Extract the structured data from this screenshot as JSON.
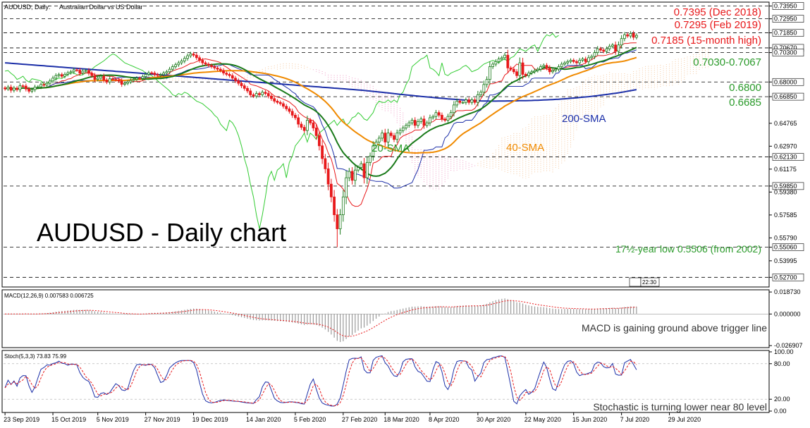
{
  "header": {
    "symbol_title": "AUDUSD, Daily:",
    "symbol_desc": "Australian Dollar vs US Dollar"
  },
  "big_title": "AUDUSD - Daily chart",
  "chart_data": [
    {
      "type": "line",
      "name": "price",
      "ylim": [
        0.52,
        0.742
      ],
      "y_ticks": [
        0.7395,
        0.7295,
        0.7185,
        0.7067,
        0.703,
        0.68,
        0.6685,
        0.64765,
        0.6297,
        0.6213,
        0.61175,
        0.5985,
        0.5938,
        0.57585,
        0.5579,
        0.5506,
        0.53995,
        0.527
      ],
      "x_labels": [
        "23 Sep 2019",
        "15 Oct 2019",
        "5 Nov 2019",
        "27 Nov 2019",
        "19 Dec 2019",
        "14 Jan 2020",
        "5 Feb 2020",
        "27 Feb 2020",
        "18 Mar 2020",
        "8 Apr 2020",
        "30 Apr 2020",
        "22 May 2020",
        "15 Jun 2020",
        "7 Jul 2020",
        "29 Jul 2020"
      ],
      "x_start": "2019-09-23",
      "colors": {
        "up": "#1a7a1a",
        "down": "#e8191b",
        "sma20": "#1a7a1a",
        "sma40": "#f08a00",
        "sma200": "#1c2fa8",
        "tenkan": "#e8191b",
        "kijun": "#1c2fa8",
        "chikou": "#33cc33",
        "cloud_bull": "#f5c9a0",
        "cloud_bear": "#f0a0c8",
        "annot_red": "#e8191b",
        "annot_green": "#2a9a2a",
        "annot_blue": "#1c2fa8",
        "annot_orange": "#f08a00"
      },
      "close": [
        0.6746,
        0.676,
        0.6735,
        0.6752,
        0.674,
        0.677,
        0.6768,
        0.6745,
        0.6728,
        0.674,
        0.676,
        0.6762,
        0.678,
        0.6775,
        0.679,
        0.6808,
        0.683,
        0.685,
        0.6858,
        0.6845,
        0.686,
        0.6872,
        0.688,
        0.6895,
        0.6892,
        0.687,
        0.6885,
        0.689,
        0.6868,
        0.685,
        0.682,
        0.683,
        0.6845,
        0.6815,
        0.68,
        0.6825,
        0.682,
        0.6815,
        0.6808,
        0.6782,
        0.679,
        0.68,
        0.6812,
        0.682,
        0.683,
        0.6828,
        0.6842,
        0.686,
        0.6872,
        0.687,
        0.6858,
        0.6852,
        0.6858,
        0.687,
        0.688,
        0.69,
        0.692,
        0.6935,
        0.695,
        0.6965,
        0.6985,
        0.7005,
        0.702,
        0.701,
        0.699,
        0.697,
        0.695,
        0.694,
        0.693,
        0.692,
        0.691,
        0.69,
        0.689,
        0.687,
        0.686,
        0.685,
        0.683,
        0.681,
        0.679,
        0.677,
        0.675,
        0.673,
        0.67,
        0.669,
        0.671,
        0.67,
        0.672,
        0.671,
        0.669,
        0.667,
        0.665,
        0.664,
        0.663,
        0.661,
        0.659,
        0.657,
        0.654,
        0.652,
        0.647,
        0.6445,
        0.642,
        0.65,
        0.648,
        0.644,
        0.638,
        0.63,
        0.62,
        0.612,
        0.6,
        0.59,
        0.576,
        0.565,
        0.576,
        0.59,
        0.605,
        0.61,
        0.603,
        0.611,
        0.613,
        0.616,
        0.605,
        0.617,
        0.622,
        0.63,
        0.633,
        0.636,
        0.64,
        0.633,
        0.64,
        0.638,
        0.635,
        0.64,
        0.642,
        0.644,
        0.646,
        0.648,
        0.65,
        0.646,
        0.649,
        0.651,
        0.646,
        0.648,
        0.652,
        0.653,
        0.656,
        0.654,
        0.651,
        0.65,
        0.653,
        0.656,
        0.662,
        0.665,
        0.664,
        0.664,
        0.666,
        0.664,
        0.666,
        0.664,
        0.67,
        0.672,
        0.678,
        0.682,
        0.692,
        0.694,
        0.696,
        0.698,
        0.699,
        0.701,
        0.691,
        0.69,
        0.688,
        0.685,
        0.695,
        0.686,
        0.685,
        0.687,
        0.688,
        0.689,
        0.69,
        0.692,
        0.693,
        0.691,
        0.688,
        0.689,
        0.69,
        0.692,
        0.694,
        0.695,
        0.696,
        0.697,
        0.696,
        0.695,
        0.697,
        0.698,
        0.696,
        0.699,
        0.7,
        0.703,
        0.706,
        0.705,
        0.704,
        0.706,
        0.708,
        0.709,
        0.704,
        0.709,
        0.714,
        0.717,
        0.716,
        0.718,
        0.715,
        0.7165
      ]
    },
    {
      "type": "bar",
      "name": "MACD(12,26,9)",
      "indicator_label": "MACD(12,26,9) 0.007583 0.006725",
      "ylim": [
        -0.028,
        0.02
      ],
      "y_ticks": [
        0.01873,
        0.0,
        -0.026907
      ]
    },
    {
      "type": "line",
      "name": "Stoch(5,3,3)",
      "indicator_label": "Stoch(5,3,3) 73.83 75.99",
      "ylim": [
        0,
        100
      ],
      "y_ticks": [
        100.0,
        80.0,
        20.0,
        0.0
      ]
    }
  ],
  "annotations": {
    "dec2018": "0.7395 (Dec 2018)",
    "feb2019": "0.7295 (Feb 2019)",
    "high15m": "0.7185 (15-month high)",
    "zone": "0.7030-0.7067",
    "lvl6800": "0.6800",
    "lvl6685": "0.6685",
    "sma200": "200-SMA",
    "sma20": "20-SMA",
    "sma40": "40-SMA",
    "low17y": "17½-year low 0.5506 (from 2002)",
    "macd_note": "MACD is gaining ground above trigger line",
    "stoch_note": "Stochastic is turning lower near 80 level",
    "time_badge": "22:30"
  }
}
